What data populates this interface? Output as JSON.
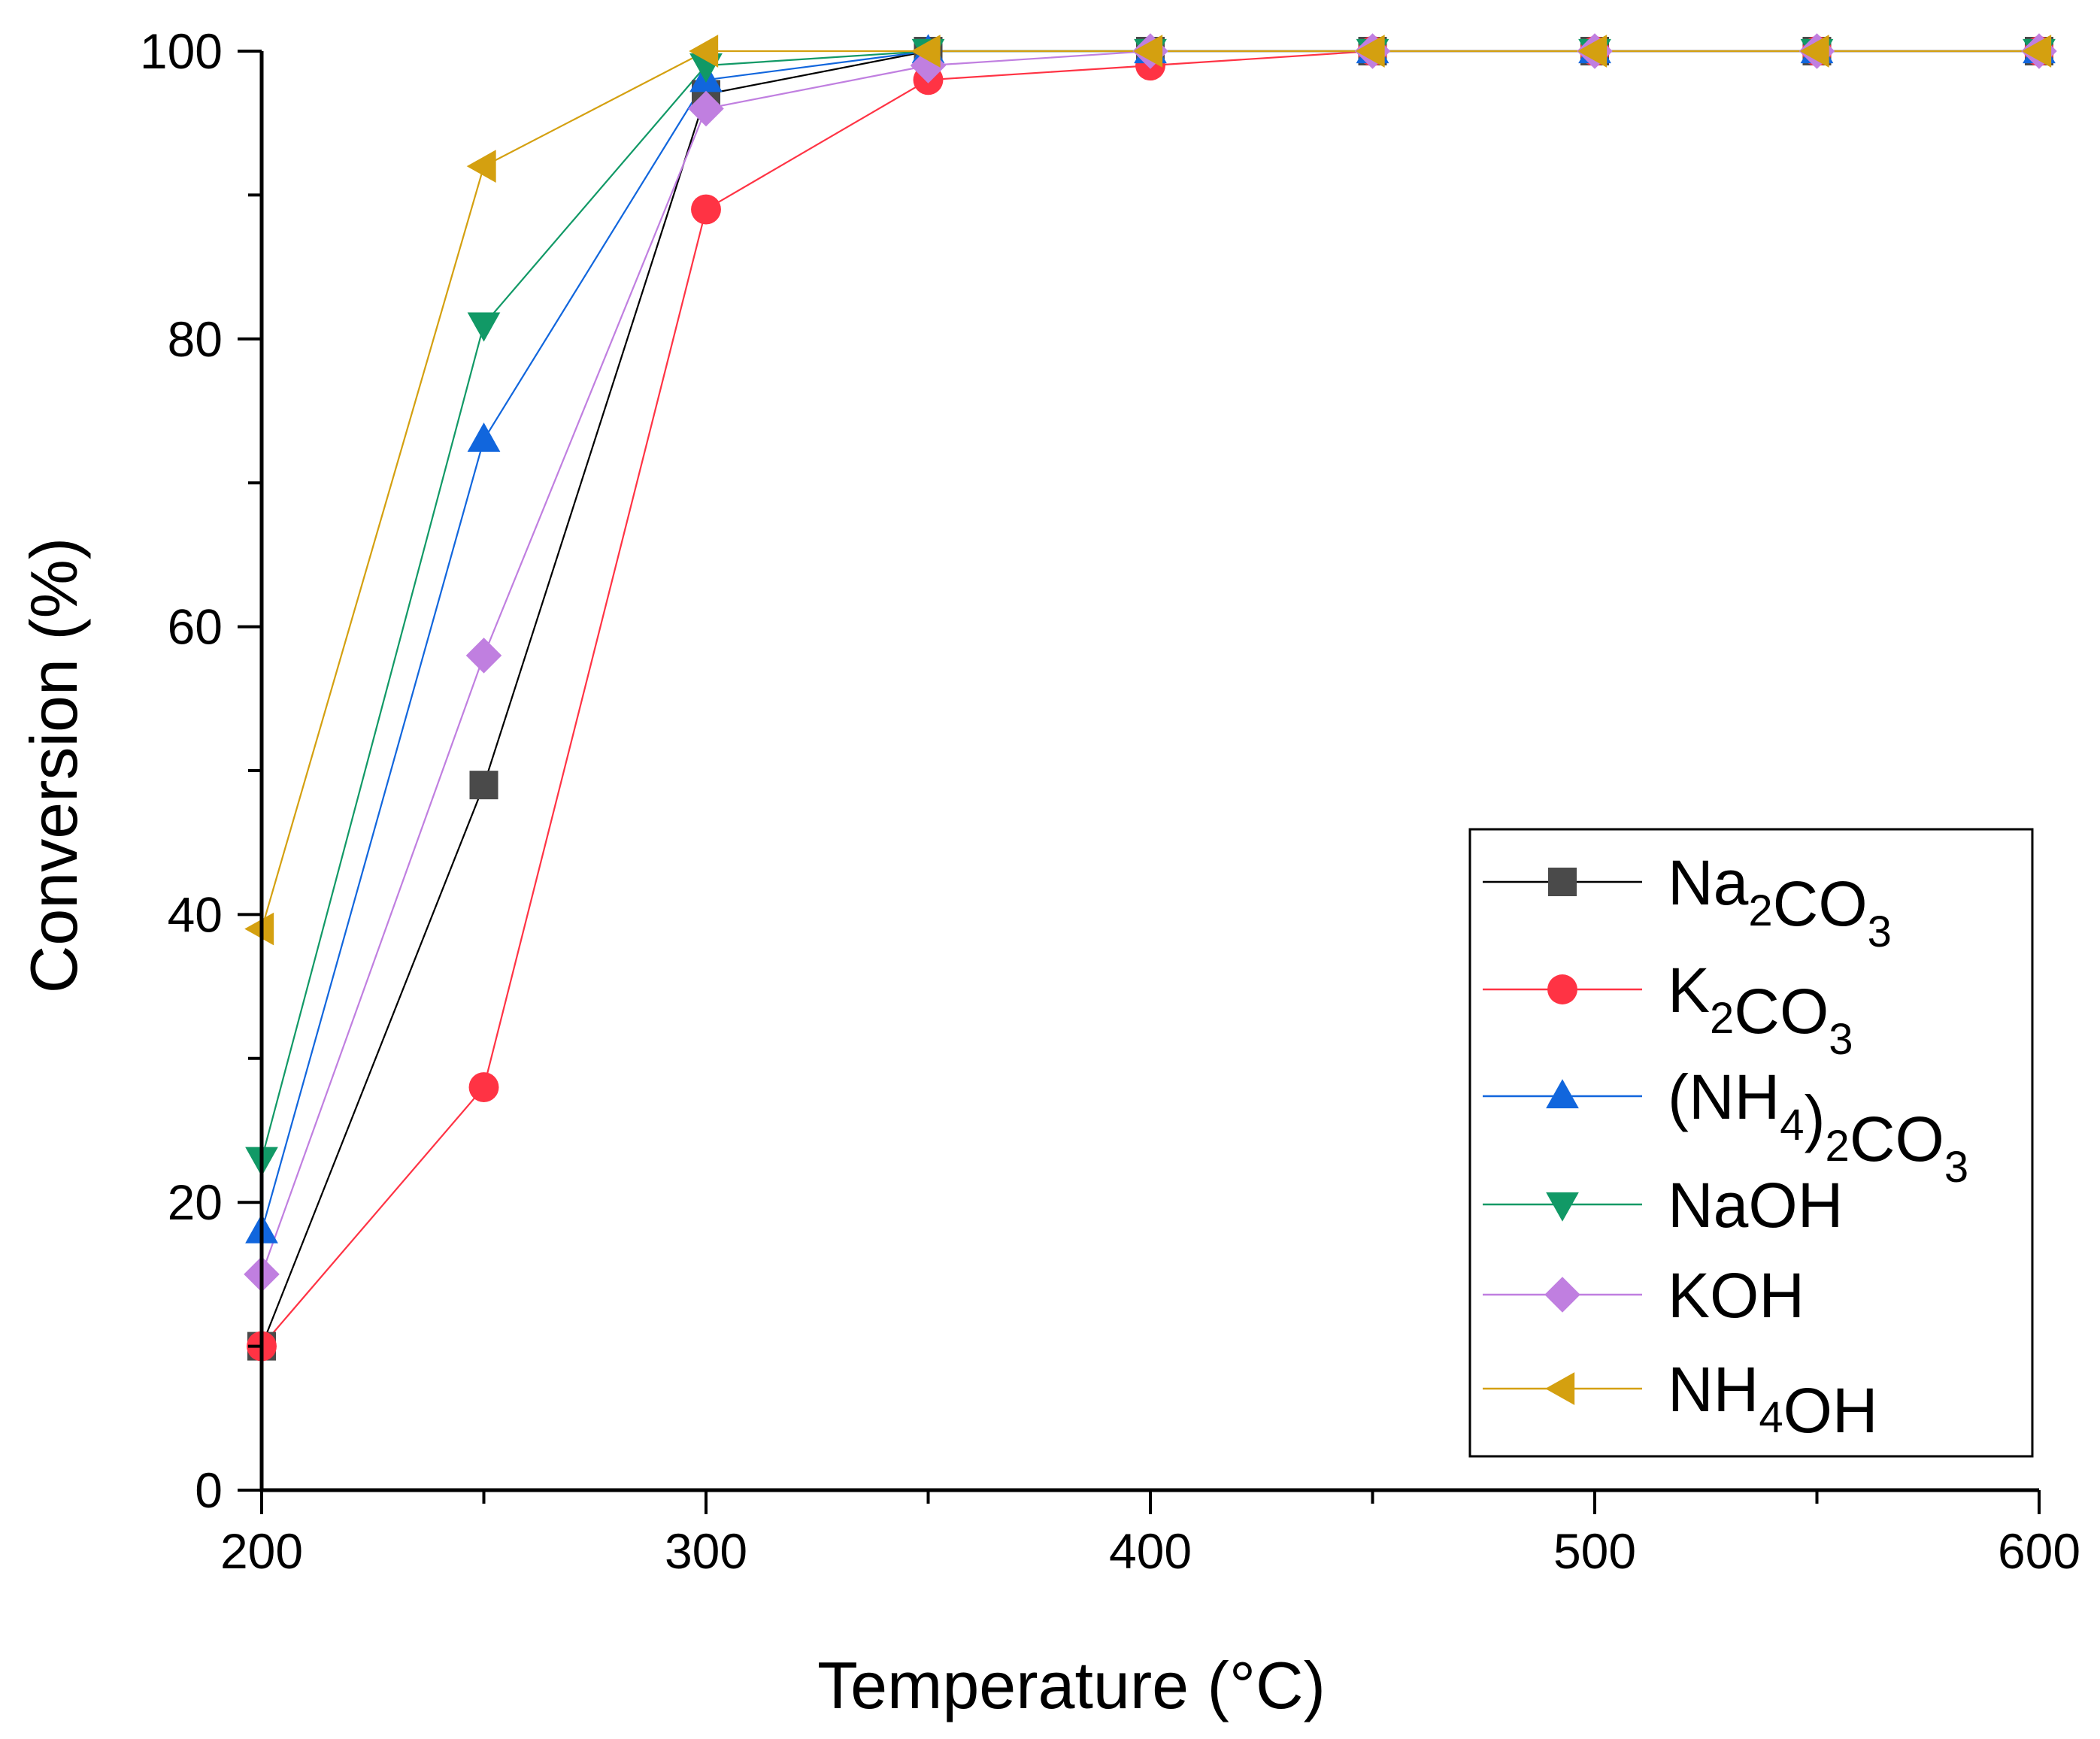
{
  "chart_data": {
    "type": "line",
    "title": "",
    "xlabel": "Temperature (°C)",
    "ylabel": "Conversion (%)",
    "xlim": [
      200,
      600
    ],
    "ylim": [
      0,
      100
    ],
    "xticks": [
      200,
      300,
      400,
      500,
      600
    ],
    "yticks": [
      0,
      20,
      40,
      60,
      80,
      100
    ],
    "x": [
      200,
      250,
      300,
      350,
      400,
      450,
      500,
      550,
      600
    ],
    "grid": false,
    "legend_position": "bottom-right",
    "series": [
      {
        "name": "Na2CO3",
        "label_parts": [
          [
            "Na",
            "n"
          ],
          [
            "2",
            "sub"
          ],
          [
            "CO",
            "n"
          ],
          [
            "3",
            "sub"
          ]
        ],
        "color": "#4a4a4a",
        "line_color": "#000000",
        "marker": "square",
        "values": [
          10,
          49,
          97,
          100,
          100,
          100,
          100,
          100,
          100
        ]
      },
      {
        "name": "K2CO3",
        "label_parts": [
          [
            "K",
            "n"
          ],
          [
            "2",
            "sub"
          ],
          [
            "CO",
            "n"
          ],
          [
            "3",
            "sub"
          ]
        ],
        "color": "#ff3344",
        "line_color": "#ff3344",
        "marker": "circle",
        "values": [
          10,
          28,
          89,
          98,
          99,
          100,
          100,
          100,
          100
        ]
      },
      {
        "name": "(NH4)2CO3",
        "label_parts": [
          [
            "(NH",
            "n"
          ],
          [
            "4",
            "sub"
          ],
          [
            ")",
            "n"
          ],
          [
            "2",
            "sub"
          ],
          [
            "CO",
            "n"
          ],
          [
            "3",
            "sub"
          ]
        ],
        "color": "#1166dd",
        "line_color": "#1166dd",
        "marker": "triangle-up",
        "values": [
          18,
          73,
          98,
          100,
          100,
          100,
          100,
          100,
          100
        ]
      },
      {
        "name": "NaOH",
        "label_parts": [
          [
            "NaOH",
            "n"
          ]
        ],
        "color": "#119966",
        "line_color": "#119966",
        "marker": "triangle-down",
        "values": [
          23,
          81,
          99,
          100,
          100,
          100,
          100,
          100,
          100
        ]
      },
      {
        "name": "KOH",
        "label_parts": [
          [
            "KOH",
            "n"
          ]
        ],
        "color": "#c07fe0",
        "line_color": "#c07fe0",
        "marker": "diamond",
        "values": [
          15,
          58,
          96,
          99,
          100,
          100,
          100,
          100,
          100
        ]
      },
      {
        "name": "NH4OH",
        "label_parts": [
          [
            "NH",
            "n"
          ],
          [
            "4",
            "sub"
          ],
          [
            "OH",
            "n"
          ]
        ],
        "color": "#d4a010",
        "line_color": "#d4a010",
        "marker": "triangle-left",
        "values": [
          39,
          92,
          100,
          100,
          100,
          100,
          100,
          100,
          100
        ]
      }
    ]
  }
}
